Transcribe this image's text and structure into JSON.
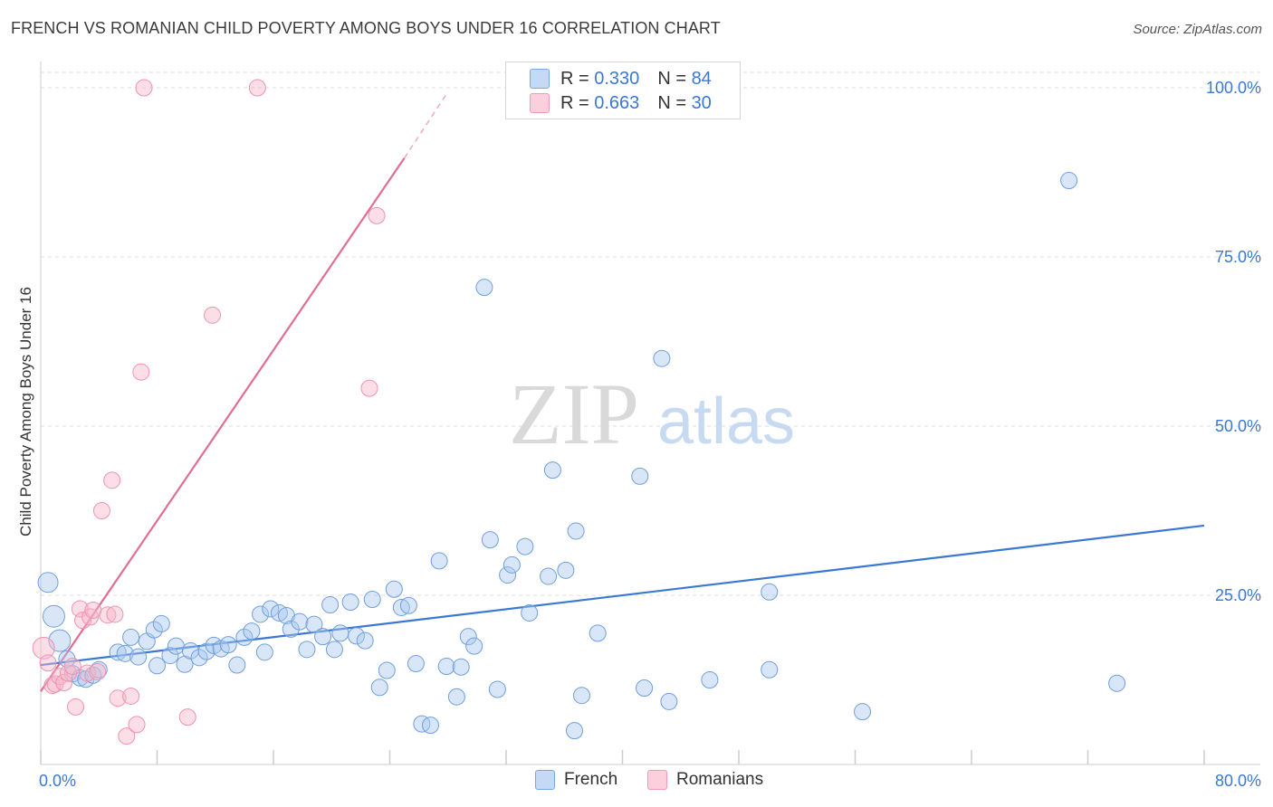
{
  "title": "FRENCH VS ROMANIAN CHILD POVERTY AMONG BOYS UNDER 16 CORRELATION CHART",
  "source": "Source: ZipAtlas.com",
  "watermark": {
    "zip": "ZIP",
    "atlas": "atlas"
  },
  "legend": {
    "french": {
      "r_label": "R = ",
      "r_value": "0.330",
      "n_label": "N = ",
      "n_value": "84",
      "color": "#a8c8f0"
    },
    "romanians": {
      "r_label": "R = ",
      "r_value": "0.663",
      "n_label": "N = ",
      "n_value": "30",
      "color": "#f7b6c8"
    }
  },
  "bottom_legend": {
    "french": "French",
    "romanians": "Romanians"
  },
  "chart_data": {
    "type": "scatter",
    "ylabel": "Child Poverty Among Boys Under 16",
    "xlabel": "",
    "xlim": [
      0,
      80
    ],
    "ylim": [
      0,
      105
    ],
    "x_tick_labels": [
      "0.0%",
      "80.0%"
    ],
    "y_tick_labels": [
      "25.0%",
      "50.0%",
      "75.0%",
      "100.0%"
    ],
    "y_ticks": [
      25,
      50,
      75,
      100
    ],
    "grid": true,
    "colors": {
      "french": "#3a78d4",
      "romanians": "#e06d95",
      "axis_label": "#3a78d4"
    },
    "series": [
      {
        "name": "French",
        "r": 0.33,
        "n": 84,
        "trend": {
          "x0": 0,
          "y0": 14.7,
          "x1": 80,
          "y1": 35.3
        },
        "points": [
          [
            0.5,
            26.9
          ],
          [
            0.9,
            21.9
          ],
          [
            1.3,
            18.3
          ],
          [
            1.8,
            15.6
          ],
          [
            2.2,
            13.4
          ],
          [
            2.7,
            12.8
          ],
          [
            3.1,
            12.6
          ],
          [
            3.6,
            13.2
          ],
          [
            4.0,
            14.0
          ],
          [
            5.3,
            16.6
          ],
          [
            5.8,
            16.4
          ],
          [
            6.2,
            18.8
          ],
          [
            6.7,
            15.9
          ],
          [
            7.3,
            18.2
          ],
          [
            7.8,
            19.9
          ],
          [
            8.3,
            20.8
          ],
          [
            8.9,
            16.1
          ],
          [
            9.3,
            17.5
          ],
          [
            9.9,
            14.8
          ],
          [
            10.3,
            16.8
          ],
          [
            10.9,
            15.8
          ],
          [
            11.4,
            16.7
          ],
          [
            11.9,
            17.6
          ],
          [
            12.4,
            17.1
          ],
          [
            12.9,
            17.7
          ],
          [
            13.5,
            14.7
          ],
          [
            14.0,
            18.8
          ],
          [
            14.5,
            19.7
          ],
          [
            15.1,
            22.2
          ],
          [
            15.4,
            16.6
          ],
          [
            15.8,
            23.0
          ],
          [
            16.4,
            22.4
          ],
          [
            16.9,
            22.0
          ],
          [
            17.2,
            20.0
          ],
          [
            17.8,
            21.1
          ],
          [
            18.3,
            17.0
          ],
          [
            18.8,
            20.7
          ],
          [
            19.4,
            18.9
          ],
          [
            19.9,
            23.6
          ],
          [
            20.2,
            17.0
          ],
          [
            20.6,
            19.4
          ],
          [
            21.3,
            24.0
          ],
          [
            21.7,
            19.0
          ],
          [
            22.3,
            18.3
          ],
          [
            22.8,
            24.4
          ],
          [
            23.3,
            11.4
          ],
          [
            23.8,
            13.9
          ],
          [
            24.3,
            25.9
          ],
          [
            24.8,
            23.2
          ],
          [
            25.3,
            23.5
          ],
          [
            25.8,
            14.9
          ],
          [
            26.2,
            6.0
          ],
          [
            26.8,
            5.8
          ],
          [
            27.4,
            30.1
          ],
          [
            27.9,
            14.5
          ],
          [
            28.6,
            10.0
          ],
          [
            28.9,
            14.4
          ],
          [
            29.4,
            18.9
          ],
          [
            29.8,
            17.5
          ],
          [
            30.5,
            70.5
          ],
          [
            30.9,
            33.2
          ],
          [
            31.4,
            11.1
          ],
          [
            32.1,
            28.0
          ],
          [
            32.4,
            29.5
          ],
          [
            33.3,
            32.2
          ],
          [
            33.6,
            22.4
          ],
          [
            34.9,
            27.8
          ],
          [
            35.2,
            43.5
          ],
          [
            36.1,
            28.7
          ],
          [
            36.7,
            5.0
          ],
          [
            36.8,
            34.5
          ],
          [
            37.2,
            10.2
          ],
          [
            38.3,
            19.4
          ],
          [
            41.2,
            42.6
          ],
          [
            41.5,
            11.3
          ],
          [
            42.7,
            60.0
          ],
          [
            43.2,
            9.3
          ],
          [
            46.0,
            12.5
          ],
          [
            50.1,
            25.5
          ],
          [
            50.1,
            14.0
          ],
          [
            56.5,
            7.8
          ],
          [
            70.7,
            86.3
          ],
          [
            74.0,
            12.0
          ],
          [
            8.0,
            14.6
          ]
        ]
      },
      {
        "name": "Romanians",
        "r": 0.663,
        "n": 30,
        "trend": {
          "x0": 0,
          "y0": 10.8,
          "x1": 25,
          "y1": 89.6,
          "dash_x1": 28,
          "dash_y1": 99.4
        },
        "points": [
          [
            0.2,
            17.2
          ],
          [
            0.5,
            15.0
          ],
          [
            0.8,
            11.7
          ],
          [
            1.0,
            11.9
          ],
          [
            1.3,
            13.0
          ],
          [
            1.6,
            12.1
          ],
          [
            1.9,
            13.5
          ],
          [
            2.2,
            14.5
          ],
          [
            2.4,
            8.5
          ],
          [
            2.7,
            23.0
          ],
          [
            2.9,
            21.3
          ],
          [
            3.2,
            13.5
          ],
          [
            3.4,
            21.8
          ],
          [
            3.6,
            22.8
          ],
          [
            3.9,
            13.7
          ],
          [
            4.2,
            37.5
          ],
          [
            4.6,
            22.1
          ],
          [
            4.9,
            42.0
          ],
          [
            5.1,
            22.2
          ],
          [
            5.3,
            9.8
          ],
          [
            5.9,
            4.2
          ],
          [
            6.2,
            10.1
          ],
          [
            6.6,
            5.9
          ],
          [
            6.9,
            58.0
          ],
          [
            7.1,
            100.0
          ],
          [
            10.1,
            7.0
          ],
          [
            11.8,
            66.4
          ],
          [
            14.9,
            100.0
          ],
          [
            22.6,
            55.6
          ],
          [
            23.1,
            81.1
          ]
        ]
      }
    ]
  }
}
